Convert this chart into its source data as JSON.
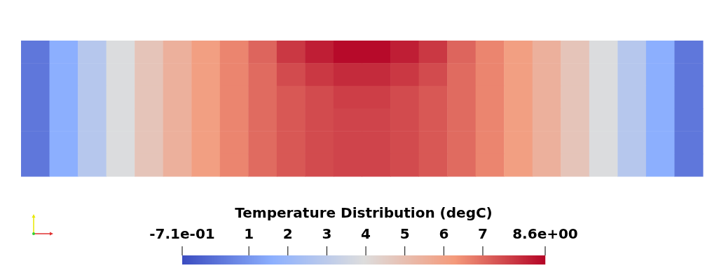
{
  "chart_data": {
    "type": "heatmap",
    "clabel": "Temperature Distribution (degC)",
    "categories": [
      null,
      null,
      null,
      null,
      null,
      null,
      null,
      null,
      null,
      null,
      null,
      null,
      null,
      null,
      null,
      null,
      null,
      null,
      null,
      null,
      null,
      null,
      null,
      null
    ],
    "y_categories": [
      null,
      null,
      null,
      null,
      null,
      null
    ],
    "cells": [
      [
        0.3,
        1.6,
        2.8,
        3.9,
        4.8,
        5.5,
        6.1,
        6.6,
        7.1,
        7.8,
        8.2,
        8.5,
        8.5,
        8.2,
        7.8,
        7.1,
        6.6,
        6.1,
        5.5,
        4.8,
        3.9,
        2.8,
        1.6,
        0.3
      ],
      [
        0.3,
        1.6,
        2.8,
        3.9,
        4.8,
        5.5,
        6.1,
        6.6,
        7.0,
        7.5,
        7.8,
        8.0,
        8.0,
        7.8,
        7.5,
        7.0,
        6.6,
        6.1,
        5.5,
        4.8,
        3.9,
        2.8,
        1.6,
        0.3
      ],
      [
        0.3,
        1.6,
        2.8,
        3.9,
        4.8,
        5.5,
        6.1,
        6.6,
        7.0,
        7.3,
        7.5,
        7.7,
        7.7,
        7.5,
        7.3,
        7.0,
        6.6,
        6.1,
        5.5,
        4.8,
        3.9,
        2.8,
        1.6,
        0.3
      ],
      [
        0.3,
        1.6,
        2.8,
        3.9,
        4.8,
        5.5,
        6.1,
        6.6,
        7.0,
        7.3,
        7.5,
        7.6,
        7.6,
        7.5,
        7.3,
        7.0,
        6.6,
        6.1,
        5.5,
        4.8,
        3.9,
        2.8,
        1.6,
        0.3
      ],
      [
        0.3,
        1.6,
        2.8,
        3.9,
        4.8,
        5.5,
        6.1,
        6.6,
        7.0,
        7.3,
        7.5,
        7.6,
        7.6,
        7.5,
        7.3,
        7.0,
        6.6,
        6.1,
        5.5,
        4.8,
        3.9,
        2.8,
        1.6,
        0.3
      ],
      [
        0.3,
        1.6,
        2.8,
        3.9,
        4.8,
        5.5,
        6.1,
        6.6,
        7.0,
        7.3,
        7.5,
        7.6,
        7.6,
        7.5,
        7.3,
        7.0,
        6.6,
        6.1,
        5.5,
        4.8,
        3.9,
        2.8,
        1.6,
        0.3
      ]
    ],
    "clim": [
      -0.71,
      8.6
    ],
    "cticks": [
      {
        "value": -0.71,
        "label": "-7.1e-01"
      },
      1,
      2,
      3,
      4,
      5,
      6,
      7,
      {
        "value": 8.6,
        "label": "8.6e+00"
      }
    ]
  }
}
